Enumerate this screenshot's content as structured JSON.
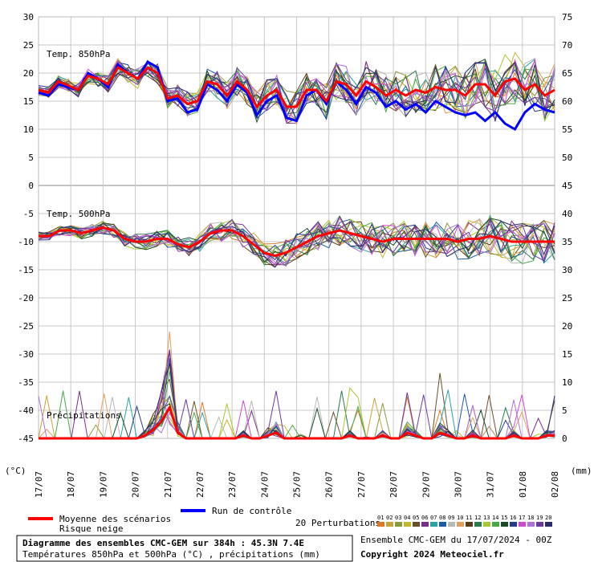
{
  "chart_data": {
    "type": "line",
    "x_dates": [
      "17/07",
      "18/07",
      "19/07",
      "20/07",
      "21/07",
      "22/07",
      "23/07",
      "24/07",
      "25/07",
      "26/07",
      "27/07",
      "28/07",
      "29/07",
      "30/07",
      "31/07",
      "01/08",
      "02/08"
    ],
    "left_axis_ticks": [
      30,
      25,
      20,
      15,
      10,
      5,
      0,
      -5,
      -10,
      -15,
      -20,
      -25,
      -30,
      -35,
      -40,
      -45
    ],
    "right_axis_ticks": [
      75,
      70,
      65,
      60,
      55,
      50,
      45,
      40,
      35,
      30,
      25,
      20,
      15,
      10,
      5,
      0
    ],
    "left_unit": "(°C)",
    "right_unit": "(mm)",
    "panel_labels": {
      "t850": "Temp. 850hPa",
      "t500": "Temp. 500hPa",
      "precip": "Précipitations"
    },
    "t850": {
      "mean": [
        17,
        16.5,
        18.5,
        17.8,
        17,
        19.5,
        19,
        18,
        21,
        20,
        19,
        21,
        20,
        15.5,
        16,
        14.5,
        15,
        18.5,
        18,
        16,
        18.5,
        17,
        14,
        16,
        17,
        14,
        14,
        17,
        17,
        15,
        18.5,
        18,
        16,
        18.5,
        17.5,
        16,
        17,
        16,
        17,
        16.5,
        17.5,
        17,
        17,
        16,
        18,
        18,
        16,
        18.5,
        19,
        17,
        18,
        16,
        17
      ],
      "control": [
        16.5,
        16,
        18,
        17.5,
        17,
        20,
        19,
        17.5,
        21.5,
        20,
        19,
        22,
        21,
        15,
        15.5,
        13,
        13.5,
        18,
        17,
        15,
        18,
        16.5,
        12.5,
        15,
        16,
        12,
        11.5,
        16,
        17,
        14.5,
        18.5,
        17,
        14.5,
        17.5,
        16.5,
        14,
        15,
        13.5,
        14.5,
        13,
        15,
        14,
        13,
        12.5,
        13,
        11.5,
        13,
        11,
        10,
        13,
        14.5,
        13.5,
        13
      ]
    },
    "t500": {
      "mean": [
        -9,
        -9,
        -8,
        -8,
        -8.5,
        -8,
        -7.5,
        -8,
        -9.5,
        -10,
        -10,
        -9.5,
        -9.5,
        -10.5,
        -11,
        -10,
        -8.5,
        -8,
        -8,
        -9,
        -10.5,
        -12,
        -12.5,
        -12,
        -11,
        -10,
        -9,
        -8.5,
        -8,
        -8.5,
        -9,
        -9.5,
        -10,
        -9.5,
        -9.5,
        -9.5,
        -9.5,
        -9.5,
        -9.5,
        -10,
        -9.5,
        -9.5,
        -9,
        -9.5,
        -10,
        -10,
        -10,
        -10,
        -10
      ]
    },
    "precip_mean": [
      0,
      0,
      0,
      0,
      0,
      0,
      0,
      0,
      0,
      0,
      0,
      0,
      0,
      0.5,
      1.5,
      3,
      5.5,
      1,
      0,
      0,
      0,
      0,
      0,
      0,
      0,
      0.5,
      0,
      0,
      0.5,
      1,
      0,
      0,
      0,
      0,
      0,
      0,
      0,
      0,
      0.5,
      0,
      0,
      0,
      0.5,
      0,
      0,
      1,
      0.5,
      0,
      0,
      1,
      0.5,
      0,
      0,
      0.5,
      0,
      0,
      0,
      0,
      0.5,
      0,
      0,
      0,
      0.5,
      0.5
    ],
    "member_colors": [
      "#d97b2a",
      "#c8a23c",
      "#8a9a3a",
      "#c4b72e",
      "#6b4f2a",
      "#7a2e8a",
      "#2aa4a4",
      "#1d5aa8",
      "#b8b8b8",
      "#e0a060",
      "#5a3a1a",
      "#2a7a4a",
      "#a8c830",
      "#4aa84a",
      "#1a4a2a",
      "#2a3a8a",
      "#d04ad0",
      "#b070d8",
      "#6a3aa0",
      "#2a2a6a"
    ]
  },
  "legend": {
    "mean_label": "Moyenne des scénarios",
    "snow_label": "Risque neige",
    "control_label": "Run de contrôle",
    "perturb_label": "20 Perturbations",
    "perturb_numbers": [
      "01",
      "02",
      "03",
      "04",
      "05",
      "06",
      "07",
      "08",
      "09",
      "10",
      "11",
      "12",
      "13",
      "14",
      "15",
      "16",
      "17",
      "18",
      "19",
      "20"
    ],
    "mean_color": "#ff0000",
    "control_color": "#0000ff"
  },
  "footer": {
    "title": "Diagramme des ensembles CMC-GEM sur 384h : 45.3N 7.4E",
    "subtitle": "Températures 850hPa et 500hPa (°C) , précipitations (mm)",
    "ensemble": "Ensemble CMC-GEM du 17/07/2024 - 00Z",
    "copyright": "Copyright 2024 Meteociel.fr"
  }
}
